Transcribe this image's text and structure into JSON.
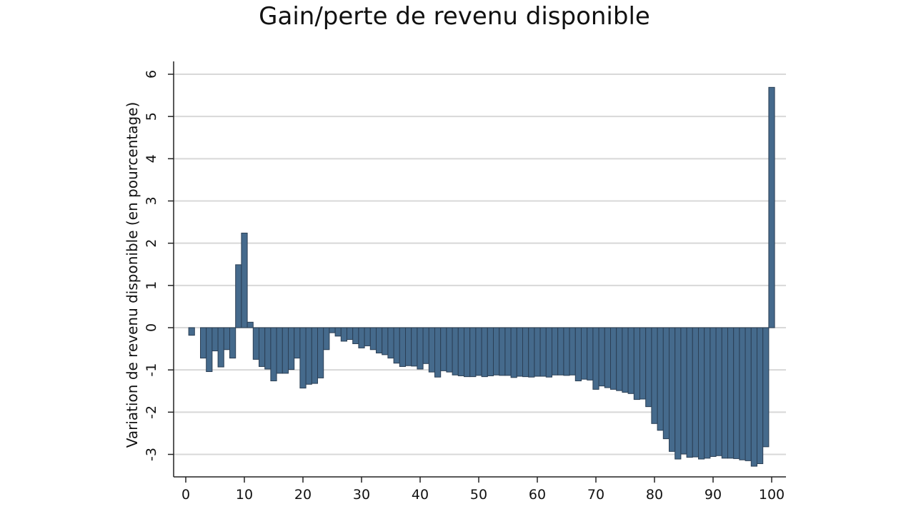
{
  "chart_data": {
    "type": "bar",
    "title": "Gain/perte de revenu disponible",
    "xlabel": "",
    "ylabel": "Variation de revenu disponible (en pourcentage)",
    "xlim": [
      -1,
      101
    ],
    "ylim": [
      -3.5,
      6.3
    ],
    "xticks": [
      0,
      10,
      20,
      30,
      40,
      50,
      60,
      70,
      80,
      90,
      100
    ],
    "yticks": [
      -3,
      -2,
      -1,
      0,
      1,
      2,
      3,
      4,
      5,
      6
    ],
    "grid": true,
    "bar_color": "#456a8c",
    "x": [
      1,
      2,
      3,
      4,
      5,
      6,
      7,
      8,
      9,
      10,
      11,
      12,
      13,
      14,
      15,
      16,
      17,
      18,
      19,
      20,
      21,
      22,
      23,
      24,
      25,
      26,
      27,
      28,
      29,
      30,
      31,
      32,
      33,
      34,
      35,
      36,
      37,
      38,
      39,
      40,
      41,
      42,
      43,
      44,
      45,
      46,
      47,
      48,
      49,
      50,
      51,
      52,
      53,
      54,
      55,
      56,
      57,
      58,
      59,
      60,
      61,
      62,
      63,
      64,
      65,
      66,
      67,
      68,
      69,
      70,
      71,
      72,
      73,
      74,
      75,
      76,
      77,
      78,
      79,
      80,
      81,
      82,
      83,
      84,
      85,
      86,
      87,
      88,
      89,
      90,
      91,
      92,
      93,
      94,
      95,
      96,
      97,
      98,
      99,
      100
    ],
    "values": [
      -0.18,
      0,
      -0.72,
      -1.04,
      -0.55,
      -0.93,
      -0.52,
      -0.72,
      1.49,
      2.24,
      0.13,
      -0.75,
      -0.92,
      -0.98,
      -1.26,
      -1.08,
      -1.08,
      -0.99,
      -0.72,
      -1.43,
      -1.34,
      -1.32,
      -1.19,
      -0.52,
      -0.12,
      -0.2,
      -0.32,
      -0.28,
      -0.38,
      -0.48,
      -0.43,
      -0.52,
      -0.6,
      -0.64,
      -0.72,
      -0.84,
      -0.92,
      -0.9,
      -0.91,
      -0.98,
      -0.85,
      -1.05,
      -1.17,
      -1.02,
      -1.05,
      -1.12,
      -1.14,
      -1.16,
      -1.16,
      -1.13,
      -1.16,
      -1.14,
      -1.12,
      -1.13,
      -1.13,
      -1.18,
      -1.15,
      -1.16,
      -1.17,
      -1.15,
      -1.15,
      -1.17,
      -1.12,
      -1.12,
      -1.13,
      -1.12,
      -1.26,
      -1.22,
      -1.24,
      -1.46,
      -1.38,
      -1.42,
      -1.46,
      -1.49,
      -1.53,
      -1.56,
      -1.7,
      -1.69,
      -1.87,
      -2.27,
      -2.43,
      -2.63,
      -2.93,
      -3.11,
      -2.99,
      -3.07,
      -3.06,
      -3.11,
      -3.09,
      -3.05,
      -3.03,
      -3.09,
      -3.09,
      -3.1,
      -3.13,
      -3.15,
      -3.28,
      -3.22,
      -2.82,
      5.69
    ]
  }
}
